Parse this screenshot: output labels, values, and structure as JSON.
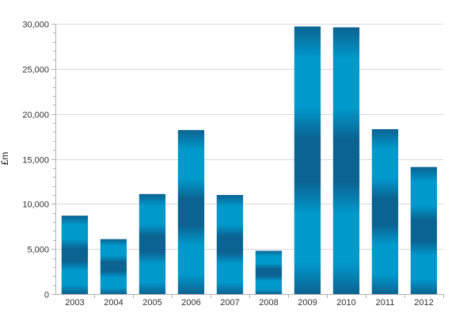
{
  "chart_data": {
    "type": "bar",
    "title": "",
    "xlabel": "",
    "ylabel": "£m",
    "categories": [
      "2003",
      "2004",
      "2005",
      "2006",
      "2007",
      "2008",
      "2009",
      "2010",
      "2011",
      "2012"
    ],
    "series": [
      {
        "values": [
          8700,
          6100,
          11100,
          18200,
          11000,
          4800,
          29700,
          29600,
          18300,
          14100
        ]
      }
    ],
    "ylim": [
      0,
      30000
    ],
    "yticks": [
      0,
      5000,
      10000,
      15000,
      20000,
      25000,
      30000
    ],
    "ytick_labels": [
      "0",
      "5,000",
      "10,000",
      "15,000",
      "20,000",
      "25,000",
      "30,000"
    ],
    "grid": true,
    "legend": "none",
    "colors": {
      "bar_dark": "#0b6391",
      "bar_light": "#0099cc",
      "grid": "#d9d9d9",
      "axis": "#b0b0b0"
    }
  }
}
